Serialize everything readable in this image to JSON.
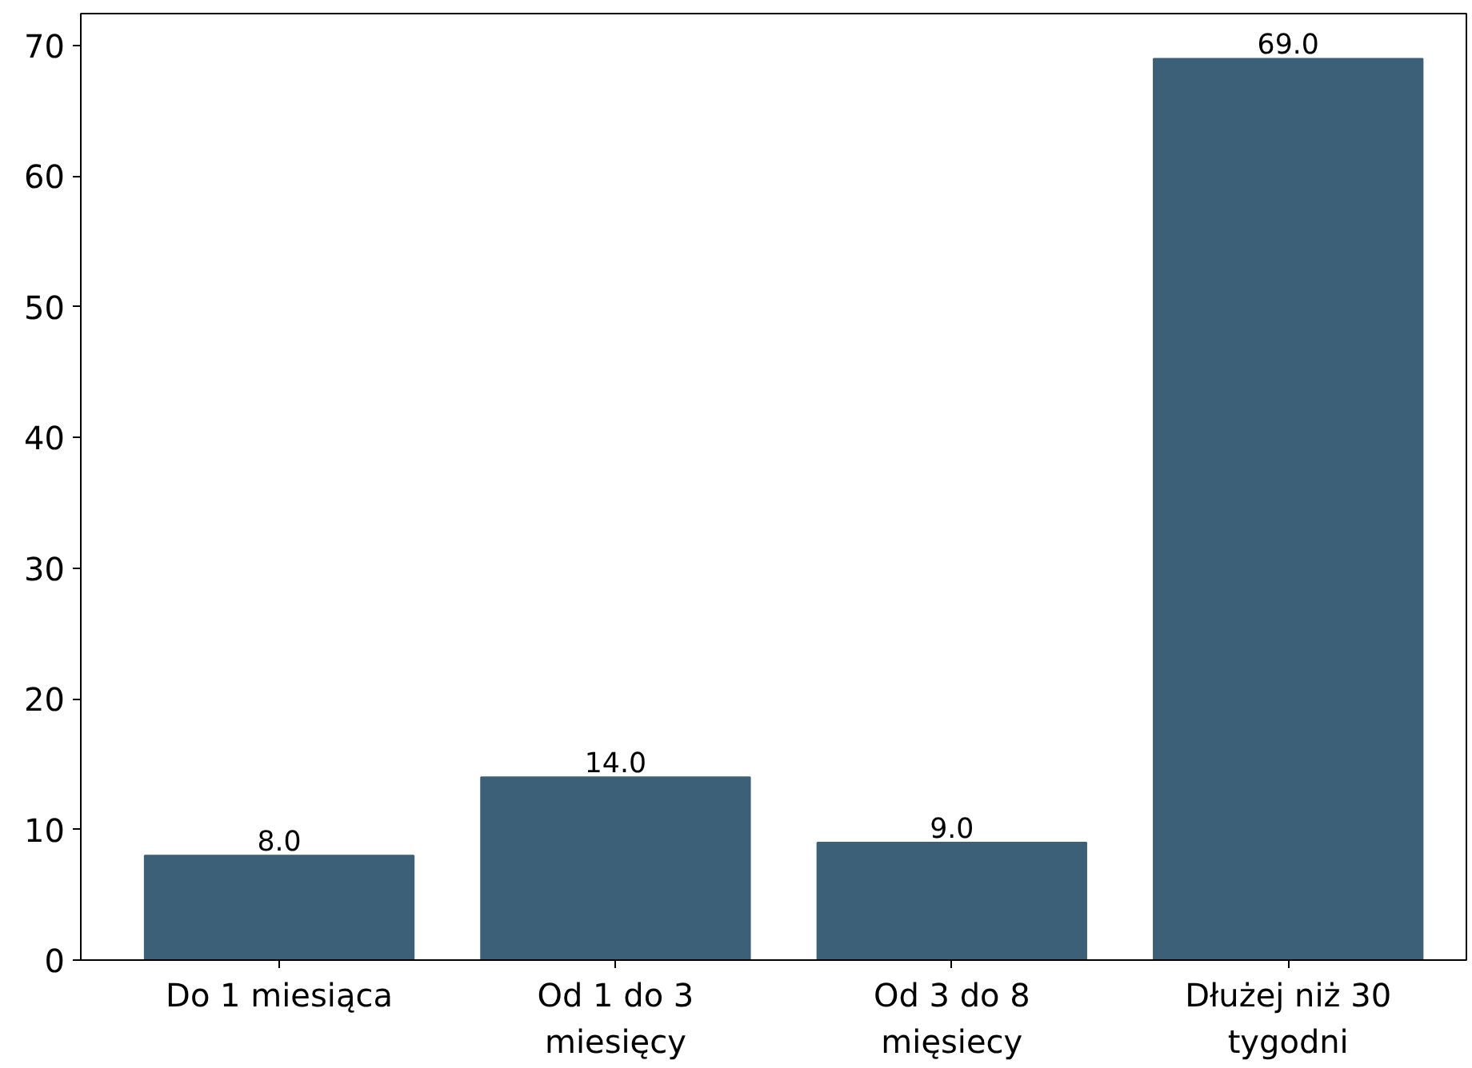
{
  "chart_data": {
    "type": "bar",
    "categories": [
      "Do 1 miesiąca",
      "Od 1 do 3\nmiesięcy",
      "Od 3 do 8\nmięsiecy",
      "Dłużej niż 30\ntygodni"
    ],
    "values": [
      8,
      14,
      9,
      69
    ],
    "value_labels": [
      "8.0",
      "14.0",
      "9.0",
      "69.0"
    ],
    "color": "#3d6079",
    "ylim": [
      0,
      72.45
    ],
    "yticks": [
      0,
      10,
      20,
      30,
      40,
      50,
      60,
      70
    ],
    "grid": false
  }
}
